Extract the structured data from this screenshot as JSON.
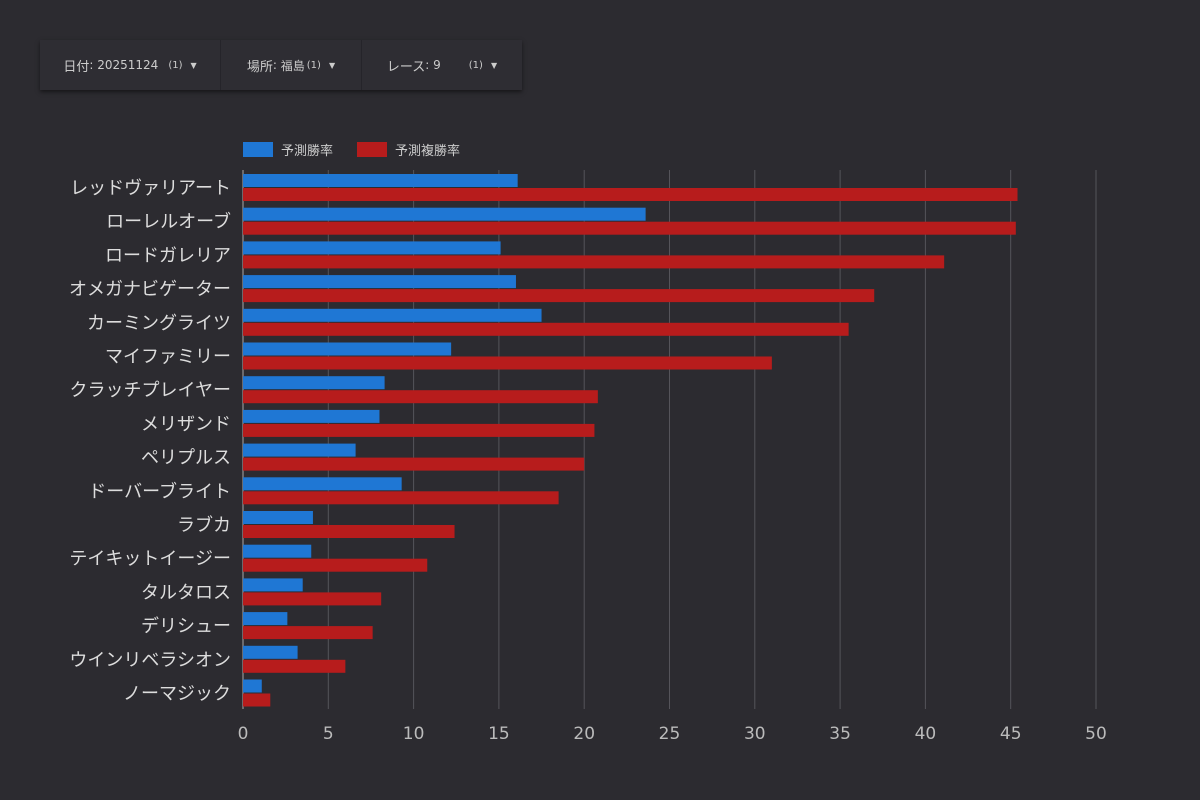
{
  "filters": [
    {
      "label": "日付",
      "value": "20251124",
      "count": "(1)",
      "width": 180
    },
    {
      "label": "場所",
      "value": "福島",
      "count": "(1)",
      "width": 140
    },
    {
      "label": "レース",
      "value": "9",
      "count": "(1)",
      "width": 160
    }
  ],
  "colors": {
    "win": "#1f77d4",
    "place": "#b71c1c",
    "grid": "#55545a",
    "text": "#dddddd"
  },
  "chart_data": {
    "type": "bar",
    "orientation": "horizontal",
    "categories": [
      "レッドヴァリアート",
      "ローレルオーブ",
      "ロードガレリア",
      "オメガナビゲーター",
      "カーミングライツ",
      "マイファミリー",
      "クラッチプレイヤー",
      "メリザンド",
      "ペリプルス",
      "ドーバーブライト",
      "ラブカ",
      "テイキットイージー",
      "タルタロス",
      "デリシュー",
      "ウインリベラシオン",
      "ノーマジック"
    ],
    "series": [
      {
        "name": "予測勝率",
        "values": [
          16.1,
          23.6,
          15.1,
          16.0,
          17.5,
          12.2,
          8.3,
          8.0,
          6.6,
          9.3,
          4.1,
          4.0,
          3.5,
          2.6,
          3.2,
          1.1
        ]
      },
      {
        "name": "予測複勝率",
        "values": [
          45.4,
          45.3,
          41.1,
          37.0,
          35.5,
          31.0,
          20.8,
          20.6,
          20.0,
          18.5,
          12.4,
          10.8,
          8.1,
          7.6,
          6.0,
          1.6
        ]
      }
    ],
    "xticks": [
      0,
      5,
      10,
      15,
      20,
      25,
      30,
      35,
      40,
      45,
      50
    ],
    "xlim": [
      0,
      50
    ],
    "grid": true,
    "legend": "top-left"
  }
}
